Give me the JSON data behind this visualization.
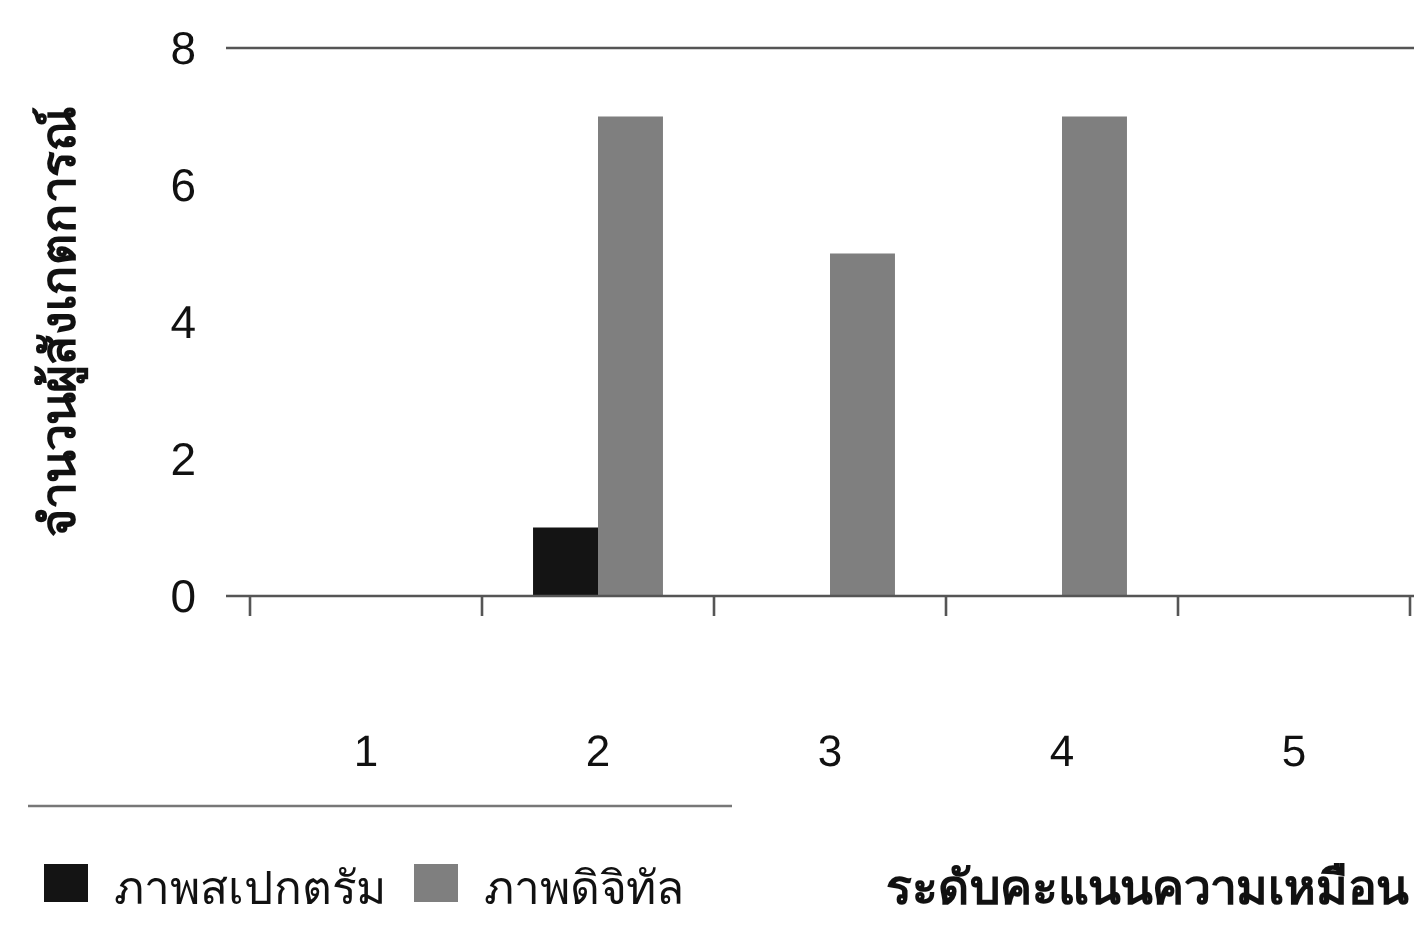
{
  "chart_data": {
    "type": "bar",
    "categories": [
      "1",
      "2",
      "3",
      "4",
      "5"
    ],
    "series": [
      {
        "name": "ภาพสเปกตรัม",
        "color": "#141414",
        "values": [
          0,
          1,
          0,
          0,
          0
        ]
      },
      {
        "name": "ภาพดิจิทัล",
        "color": "#7f7f7f",
        "values": [
          0,
          7,
          5,
          7,
          0
        ]
      }
    ],
    "xlabel": "ระดับคะแนนความเหมือน",
    "ylabel": "จำนวนผู้สังเกตการณ์",
    "ylim": [
      0,
      8
    ],
    "yticks": [
      0,
      2,
      4,
      6,
      8
    ],
    "legend": "bottom left",
    "grid": false
  }
}
